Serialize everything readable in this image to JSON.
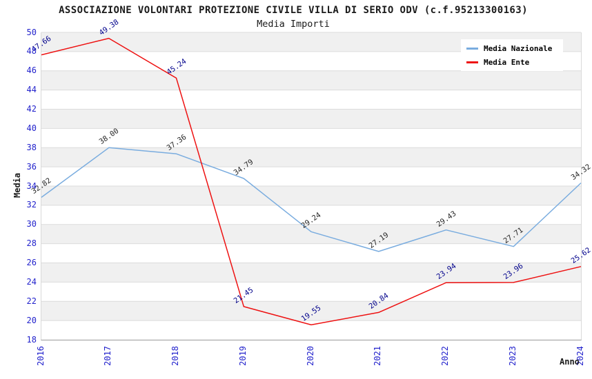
{
  "title": "ASSOCIAZIONE VOLONTARI PROTEZIONE CIVILE VILLA DI SERIO ODV (c.f.95213300163)",
  "subtitle": "Media Importi",
  "chart_data": {
    "type": "line",
    "title": "ASSOCIAZIONE VOLONTARI PROTEZIONE CIVILE VILLA DI SERIO ODV (c.f.95213300163)",
    "subtitle": "Media Importi",
    "xlabel": "Anno",
    "ylabel": "Media",
    "categories": [
      "2016",
      "2017",
      "2018",
      "2019",
      "2020",
      "2021",
      "2022",
      "2023",
      "2024"
    ],
    "series": [
      {
        "name": "Media Nazionale",
        "color": "#79ACDF",
        "label_color": "#262626",
        "values": [
          32.82,
          38.0,
          37.36,
          34.79,
          29.24,
          27.19,
          29.43,
          27.71,
          34.32
        ]
      },
      {
        "name": "Media Ente",
        "color": "#EE1111",
        "label_color": "#00008B",
        "values": [
          47.66,
          49.38,
          45.24,
          21.45,
          19.55,
          20.84,
          23.94,
          23.96,
          25.62
        ]
      }
    ],
    "ylim": [
      18,
      50
    ],
    "ytick_step": 2,
    "grid": "horizontal bands every 2 units, gray band from 48-50 alternating down",
    "legend_position": "top-right",
    "colors": {
      "tick_label": "#2222CC",
      "band": "#F0F0F0",
      "gridline": "#DBDBDB",
      "axis_line": "#999999",
      "plot_border": "#D9D9D9",
      "background": "#FFFFFF",
      "title_text": "#1A1A1A"
    }
  }
}
